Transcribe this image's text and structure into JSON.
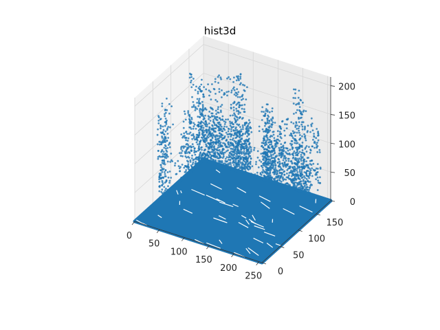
{
  "chart_data": {
    "type": "scatter",
    "projection": "3d",
    "title": "hist3d",
    "xlabel": "",
    "ylabel": "",
    "zlabel": "",
    "x_ticks": [
      0,
      50,
      100,
      150,
      200,
      250
    ],
    "y_ticks": [
      0,
      50,
      100,
      150
    ],
    "z_ticks": [
      0,
      50,
      100,
      150,
      200
    ],
    "xlim": [
      0,
      256
    ],
    "ylim": [
      0,
      190
    ],
    "zlim": [
      0,
      215
    ],
    "grid": true,
    "legend": "none",
    "marker_color": "#1f77b4",
    "series": [
      {
        "description_of_values": "dense floor of points at z≈0 covering the full x/y grid, plus scattered column points with z roughly 20–210",
        "floor_z": 0,
        "column_z_range": [
          20,
          210
        ]
      }
    ]
  }
}
